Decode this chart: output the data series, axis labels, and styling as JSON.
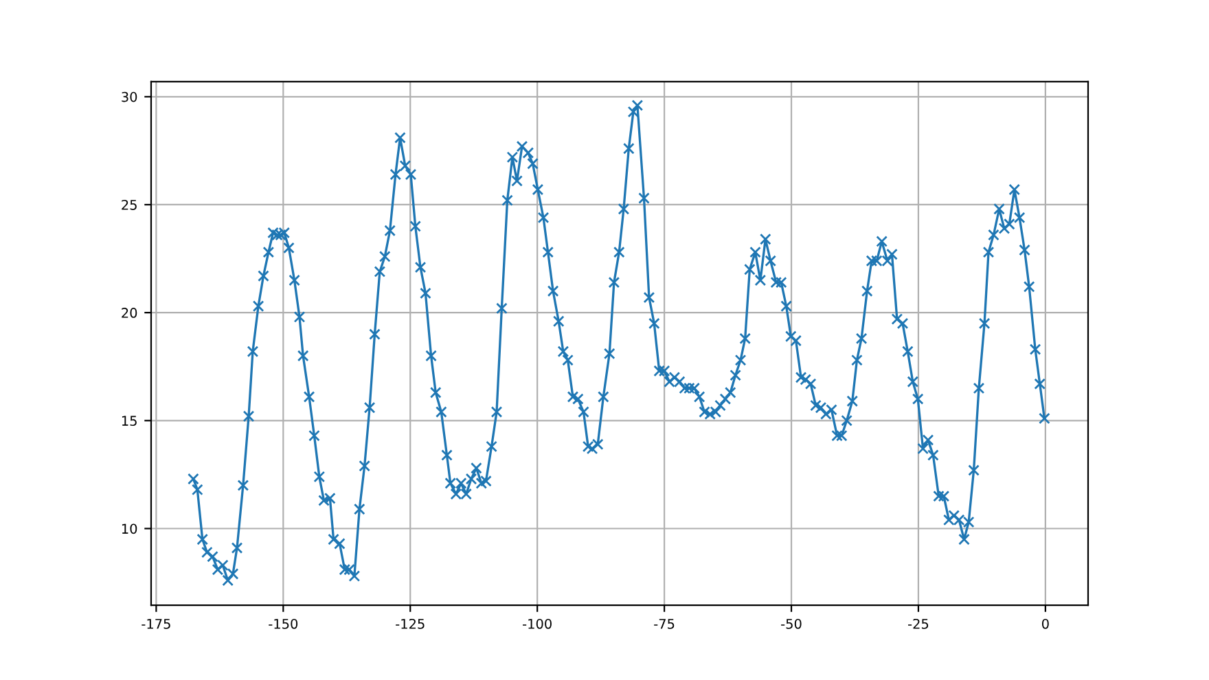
{
  "chart_data": {
    "type": "line",
    "marker": "cross",
    "grid": true,
    "xlim": [
      -176,
      8.4
    ],
    "ylim": [
      6.45,
      30.7
    ],
    "xticks": [
      -175,
      -150,
      -125,
      -100,
      -75,
      -50,
      -25,
      0
    ],
    "yticks": [
      10,
      15,
      20,
      25,
      30
    ],
    "series": [
      {
        "color": "#1f77b4",
        "x": [
          -167.7,
          -166.9,
          -165.9,
          -165.0,
          -163.9,
          -162.9,
          -161.9,
          -160.9,
          -159.9,
          -159.1,
          -157.9,
          -156.8,
          -156.0,
          -154.9,
          -153.9,
          -152.9,
          -152.0,
          -151.2,
          -150.5,
          -149.8,
          -148.9,
          -147.8,
          -146.8,
          -146.1,
          -144.9,
          -143.9,
          -142.9,
          -142.0,
          -140.8,
          -140.1,
          -138.9,
          -137.9,
          -137.0,
          -136.0,
          -135.0,
          -134.0,
          -133.0,
          -132.0,
          -131.0,
          -130.0,
          -129.0,
          -127.9,
          -127.0,
          -126.0,
          -124.9,
          -124.0,
          -123.0,
          -122.0,
          -120.9,
          -120.0,
          -118.9,
          -117.8,
          -117.1,
          -116.0,
          -115.0,
          -114.0,
          -113.0,
          -112.0,
          -111.0,
          -110.1,
          -109.0,
          -108.0,
          -107.0,
          -105.9,
          -104.9,
          -104.0,
          -103.0,
          -101.8,
          -100.9,
          -99.9,
          -98.8,
          -97.9,
          -96.9,
          -95.8,
          -94.9,
          -94.0,
          -93.0,
          -92.0,
          -90.9,
          -90.0,
          -89.2,
          -88.1,
          -87.0,
          -85.8,
          -84.9,
          -83.9,
          -83.0,
          -82.0,
          -81.1,
          -80.3,
          -79.0,
          -78.0,
          -77.0,
          -76.0,
          -75.0,
          -74.0,
          -73.0,
          -72.0,
          -71.0,
          -70.1,
          -69.1,
          -68.1,
          -67.1,
          -66.0,
          -64.9,
          -64.0,
          -63.0,
          -62.0,
          -61.0,
          -60.0,
          -59.1,
          -58.2,
          -57.1,
          -56.1,
          -55.1,
          -54.1,
          -53.0,
          -52.0,
          -51.0,
          -50.1,
          -49.1,
          -48.1,
          -47.2,
          -46.2,
          -45.2,
          -44.2,
          -43.2,
          -42.1,
          -41.0,
          -40.1,
          -39.1,
          -38.0,
          -37.1,
          -36.2,
          -35.1,
          -34.2,
          -33.2,
          -32.2,
          -31.1,
          -30.2,
          -29.2,
          -28.1,
          -27.1,
          -26.1,
          -25.1,
          -24.1,
          -23.1,
          -22.1,
          -21.0,
          -20.0,
          -19.0,
          -18.0,
          -17.0,
          -16.0,
          -15.1,
          -14.1,
          -13.1,
          -12.0,
          -11.2,
          -10.2,
          -9.1,
          -8.1,
          -7.1,
          -6.1,
          -5.1,
          -4.1,
          -3.2,
          -2.0,
          -1.1,
          -0.2
        ],
        "values": [
          12.3,
          11.8,
          9.5,
          8.9,
          8.7,
          8.1,
          8.3,
          7.6,
          7.9,
          9.1,
          12.0,
          15.2,
          18.2,
          20.3,
          21.7,
          22.8,
          23.7,
          23.6,
          23.6,
          23.7,
          23.0,
          21.5,
          19.8,
          18.0,
          16.1,
          14.3,
          12.4,
          11.3,
          11.4,
          9.5,
          9.3,
          8.1,
          8.1,
          7.8,
          10.9,
          12.9,
          15.6,
          19.0,
          21.9,
          22.6,
          23.8,
          26.4,
          28.1,
          26.8,
          26.4,
          24.0,
          22.1,
          20.9,
          18.0,
          16.3,
          15.4,
          13.4,
          12.1,
          11.6,
          12.1,
          11.6,
          12.3,
          12.8,
          12.1,
          12.2,
          13.8,
          15.4,
          20.2,
          25.2,
          27.2,
          26.1,
          27.7,
          27.4,
          26.9,
          25.7,
          24.4,
          22.8,
          21.0,
          19.6,
          18.2,
          17.8,
          16.1,
          16.0,
          15.4,
          13.8,
          13.7,
          13.9,
          16.1,
          18.1,
          21.4,
          22.8,
          24.8,
          27.6,
          29.3,
          29.6,
          25.3,
          20.7,
          19.5,
          17.3,
          17.3,
          16.8,
          17.0,
          16.8,
          16.5,
          16.5,
          16.5,
          16.1,
          15.4,
          15.3,
          15.4,
          15.7,
          16.0,
          16.3,
          17.1,
          17.8,
          18.8,
          22.0,
          22.8,
          21.5,
          23.4,
          22.4,
          21.4,
          21.4,
          20.3,
          18.9,
          18.7,
          17.0,
          16.9,
          16.7,
          15.7,
          15.6,
          15.3,
          15.5,
          14.3,
          14.3,
          15.0,
          15.9,
          17.8,
          18.8,
          21.0,
          22.4,
          22.4,
          23.3,
          22.4,
          22.7,
          19.7,
          19.5,
          18.2,
          16.8,
          16.0,
          13.7,
          14.1,
          13.4,
          11.5,
          11.5,
          10.4,
          10.6,
          10.4,
          9.5,
          10.3,
          12.7,
          16.5,
          19.5,
          22.8,
          23.6,
          24.8,
          23.9,
          24.1,
          25.7,
          24.4,
          22.9,
          21.2,
          18.3,
          16.7,
          15.1
        ]
      }
    ]
  }
}
